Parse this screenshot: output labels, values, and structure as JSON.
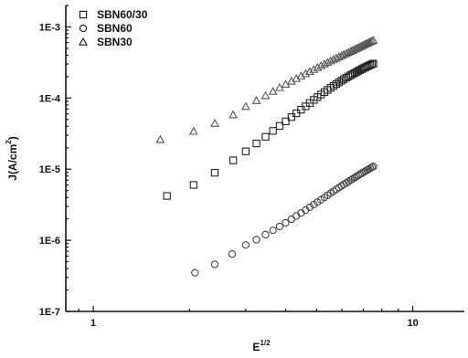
{
  "chart_data": {
    "type": "scatter",
    "title": "",
    "xlabel": "E",
    "xlabel_sup": "1/2",
    "ylabel": "J(A/cm",
    "ylabel_sup": "2",
    "ylabel_close": ")",
    "x_scale": "log",
    "y_scale": "log",
    "xlim": [
      0.82,
      14.5
    ],
    "ylim": [
      1e-07,
      0.002
    ],
    "x_ticks": [
      {
        "value": 1,
        "label": "1"
      },
      {
        "value": 10,
        "label": "10"
      }
    ],
    "y_ticks": [
      {
        "value": 1e-07,
        "label": "1E-7"
      },
      {
        "value": 1e-06,
        "label": "1E-6"
      },
      {
        "value": 1e-05,
        "label": "1E-5"
      },
      {
        "value": 0.0001,
        "label": "1E-4"
      },
      {
        "value": 0.001,
        "label": "1E-3"
      }
    ],
    "grid": false,
    "legend_position": "top-left",
    "series": [
      {
        "name": "SBN60/30",
        "marker": "square",
        "color": "#222222",
        "x": [
          1.7,
          2.06,
          2.4,
          2.74,
          3.0,
          3.24,
          3.46,
          3.65,
          3.83,
          4.0,
          4.17,
          4.32,
          4.47,
          4.62,
          4.76,
          4.9,
          5.03,
          5.16,
          5.29,
          5.41,
          5.53,
          5.65,
          5.76,
          5.87,
          5.98,
          6.08,
          6.19,
          6.29,
          6.39,
          6.48,
          6.58,
          6.67,
          6.76,
          6.85,
          6.94,
          7.03,
          7.11,
          7.2,
          7.28,
          7.36,
          7.45,
          7.53
        ],
        "y": [
          4.2e-06,
          6e-06,
          8.9e-06,
          1.33e-05,
          1.78e-05,
          2.3e-05,
          2.85e-05,
          3.45e-05,
          4.05e-05,
          4.7e-05,
          5.4e-05,
          6.1e-05,
          6.85e-05,
          7.65e-05,
          8.5e-05,
          9.4e-05,
          0.000103,
          0.000112,
          0.000121,
          0.00013,
          0.000139,
          0.000148,
          0.000157,
          0.000166,
          0.000175,
          0.000184,
          0.000193,
          0.000201,
          0.000209,
          0.000217,
          0.000225,
          0.000233,
          0.000241,
          0.000249,
          0.000256,
          0.000264,
          0.000271,
          0.000278,
          0.000285,
          0.000292,
          0.000299,
          0.000305
        ]
      },
      {
        "name": "SBN60",
        "marker": "circle",
        "color": "#444444",
        "x": [
          2.08,
          2.4,
          2.72,
          3.0,
          3.24,
          3.46,
          3.65,
          3.83,
          4.0,
          4.17,
          4.32,
          4.47,
          4.62,
          4.76,
          4.9,
          5.03,
          5.16,
          5.29,
          5.41,
          5.53,
          5.65,
          5.76,
          5.87,
          5.98,
          6.08,
          6.19,
          6.29,
          6.39,
          6.48,
          6.58,
          6.67,
          6.76,
          6.85,
          6.94,
          7.03,
          7.11,
          7.2,
          7.28,
          7.36,
          7.45,
          7.53
        ],
        "y": [
          3.5e-07,
          4.6e-07,
          6.4e-07,
          8.6e-07,
          1.02e-06,
          1.2e-06,
          1.38e-06,
          1.56e-06,
          1.76e-06,
          1.98e-06,
          2.2e-06,
          2.42e-06,
          2.66e-06,
          2.92e-06,
          3.18e-06,
          3.44e-06,
          3.72e-06,
          4e-06,
          4.3e-06,
          4.6e-06,
          4.9e-06,
          5.2e-06,
          5.5e-06,
          5.8e-06,
          6.1e-06,
          6.4e-06,
          6.7e-06,
          7e-06,
          7.3e-06,
          7.6e-06,
          7.9e-06,
          8.2e-06,
          8.5e-06,
          8.8e-06,
          9.1e-06,
          9.4e-06,
          9.7e-06,
          1e-05,
          1.03e-05,
          1.06e-05,
          1.09e-05
        ]
      },
      {
        "name": "SBN30",
        "marker": "triangle",
        "color": "#555555",
        "x": [
          1.62,
          2.06,
          2.4,
          2.74,
          3.0,
          3.24,
          3.46,
          3.65,
          3.83,
          4.0,
          4.17,
          4.32,
          4.47,
          4.62,
          4.76,
          4.9,
          5.03,
          5.16,
          5.29,
          5.41,
          5.53,
          5.65,
          5.76,
          5.87,
          5.98,
          6.08,
          6.19,
          6.29,
          6.39,
          6.48,
          6.58,
          6.67,
          6.76,
          6.85,
          6.94,
          7.03,
          7.11,
          7.2,
          7.28,
          7.36,
          7.45,
          7.53
        ],
        "y": [
          2.6e-05,
          3.4e-05,
          4.4e-05,
          5.8e-05,
          7.6e-05,
          9.2e-05,
          0.000108,
          0.000124,
          0.00014,
          0.000156,
          0.000172,
          0.000188,
          0.000204,
          0.00022,
          0.000236,
          0.000252,
          0.000268,
          0.000284,
          0.0003,
          0.000316,
          0.000332,
          0.000348,
          0.000363,
          0.000378,
          0.000393,
          0.000408,
          0.000423,
          0.000438,
          0.000453,
          0.000468,
          0.000483,
          0.000498,
          0.000513,
          0.000528,
          0.000543,
          0.000558,
          0.000573,
          0.000588,
          0.000603,
          0.000618,
          0.000633,
          0.000648
        ]
      }
    ]
  }
}
